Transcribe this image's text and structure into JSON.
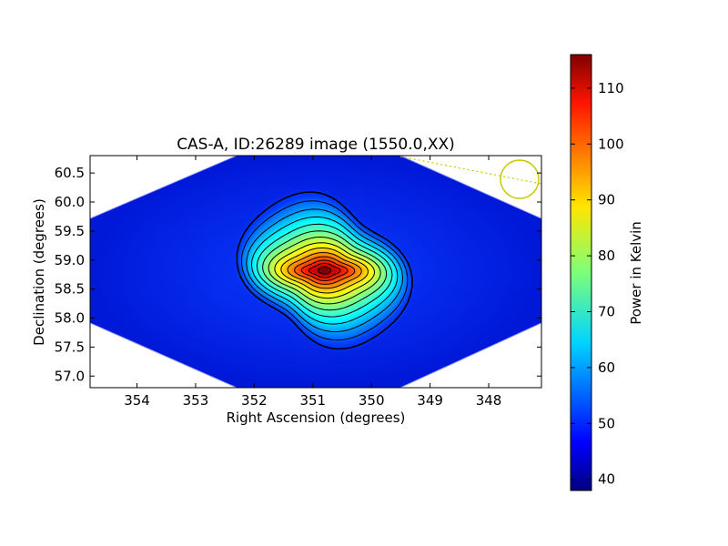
{
  "chart_data": {
    "type": "heatmap",
    "title": "CAS-A, ID:26289 image (1550.0,XX)",
    "xlabel": "Right Ascension (degrees)",
    "ylabel": "Declination (degrees)",
    "x_axis_reversed": true,
    "xlim": [
      354.8,
      347.1
    ],
    "ylim": [
      56.8,
      60.8
    ],
    "x_ticks": [
      "354",
      "353",
      "352",
      "351",
      "350",
      "349",
      "348"
    ],
    "y_ticks": [
      "57.0",
      "57.5",
      "58.0",
      "58.5",
      "59.0",
      "59.5",
      "60.0",
      "60.5"
    ],
    "peak": {
      "ra": 350.8,
      "dec": 58.82,
      "value": 116
    },
    "background_level": 42,
    "colormap": "jet",
    "contours": "black, about 13 levels around the peak",
    "beam_marker": {
      "ra": 347.4,
      "dec": 60.42,
      "color": "#c8c800"
    },
    "colorbar": {
      "label": "Power in Kelvin",
      "range": [
        38,
        116
      ],
      "ticks": [
        "40",
        "50",
        "60",
        "70",
        "80",
        "90",
        "100",
        "110"
      ]
    },
    "grid": false
  }
}
